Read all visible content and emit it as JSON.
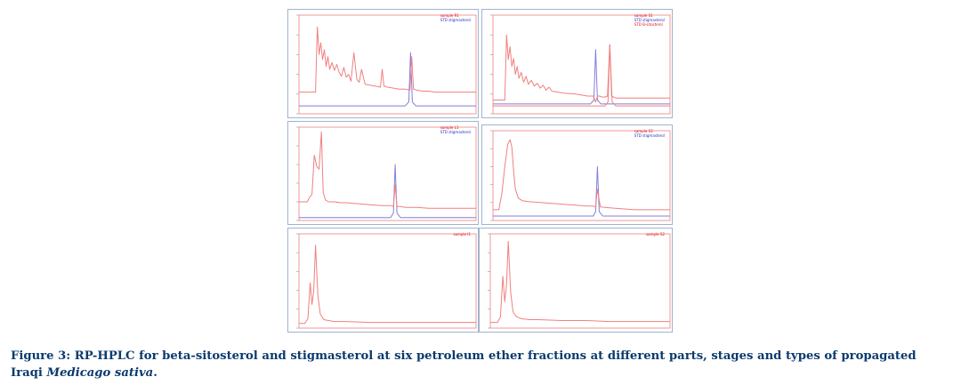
{
  "figure": {
    "caption_lead": "Figure 3: RP-HPLC for beta-sitosterol and stigmasterol at six petroleum ether fractions at different parts, stages and types of propagated Iraqi",
    "caption_italic": "Medicago sativa",
    "caption_end": ".",
    "colors": {
      "sample": "#f08080",
      "standard": "#8080d8",
      "frame": "#9fb4cf",
      "caption": "#0b3a6e",
      "legend_sample": "#e01010",
      "legend_standard": "#2030c0"
    }
  },
  "chart_data": [
    {
      "type": "line",
      "legend": [
        "sample R1",
        "STD stigmasterol"
      ],
      "xlim": [
        0,
        30
      ],
      "ylim": [
        0,
        100
      ],
      "series": [
        {
          "name": "sample R1",
          "role": "sample",
          "x": [
            0,
            2.8,
            3.1,
            3.4,
            3.7,
            4.0,
            4.3,
            4.6,
            4.9,
            5.2,
            5.6,
            6.0,
            6.4,
            6.8,
            7.2,
            7.6,
            8.0,
            8.4,
            8.8,
            9.3,
            9.8,
            10.2,
            10.6,
            11.2,
            12,
            13,
            13.8,
            14.1,
            14.4,
            15,
            16,
            17,
            18,
            18.8,
            19.1,
            19.4,
            20,
            21,
            22,
            23,
            24,
            26,
            28,
            30
          ],
          "y": [
            22,
            22,
            88,
            60,
            72,
            55,
            65,
            48,
            58,
            45,
            52,
            44,
            50,
            42,
            38,
            47,
            37,
            40,
            33,
            62,
            35,
            32,
            45,
            30,
            29,
            28,
            27,
            45,
            28,
            27,
            26,
            25,
            25,
            24,
            58,
            25,
            24,
            23,
            23,
            22,
            22,
            22,
            22,
            22
          ]
        },
        {
          "name": "STD stigmasterol",
          "role": "standard",
          "x": [
            0,
            18,
            18.6,
            18.9,
            19.2,
            19.8,
            30
          ],
          "y": [
            8,
            8,
            12,
            62,
            12,
            8,
            8
          ]
        }
      ]
    },
    {
      "type": "line",
      "legend": [
        "sample S1",
        "STD stigmasterol",
        "STD B-sitosterol"
      ],
      "xlim": [
        0,
        30
      ],
      "ylim": [
        0,
        100
      ],
      "series": [
        {
          "name": "sample S1",
          "role": "sample",
          "x": [
            0,
            2,
            2.3,
            2.6,
            2.9,
            3.2,
            3.5,
            3.8,
            4.1,
            4.4,
            4.8,
            5.2,
            5.6,
            6,
            6.5,
            7,
            7.5,
            8,
            8.5,
            9,
            9.5,
            10,
            11,
            12,
            14,
            16,
            17,
            17.4,
            17.7,
            18,
            18.5,
            19,
            19.4,
            19.8,
            20.1,
            20.4,
            20.8,
            22,
            24,
            26,
            28,
            30
          ],
          "y": [
            14,
            14,
            80,
            55,
            68,
            48,
            56,
            40,
            48,
            36,
            42,
            32,
            38,
            30,
            34,
            28,
            31,
            26,
            29,
            24,
            27,
            23,
            22,
            21,
            20,
            18,
            18,
            12,
            18,
            18,
            17,
            17,
            18,
            70,
            18,
            17,
            16,
            16,
            16,
            16,
            16,
            16
          ]
        },
        {
          "name": "STD stigmasterol",
          "role": "standard",
          "x": [
            0,
            16.5,
            17.1,
            17.4,
            17.7,
            18.3,
            30
          ],
          "y": [
            10,
            10,
            14,
            65,
            14,
            10,
            10
          ]
        },
        {
          "name": "STD B-sitosterol",
          "role": "sample",
          "x": [
            0,
            19,
            19.5,
            19.8,
            20.2,
            20.8,
            30
          ],
          "y": [
            8,
            8,
            12,
            70,
            12,
            8,
            8
          ]
        }
      ]
    },
    {
      "type": "line",
      "legend": [
        "sample L1",
        "STD stigmasterol"
      ],
      "xlim": [
        0,
        30
      ],
      "ylim": [
        0,
        100
      ],
      "series": [
        {
          "name": "sample L1",
          "role": "sample",
          "x": [
            0,
            1.4,
            1.8,
            2.2,
            2.6,
            3.0,
            3.4,
            3.8,
            4.1,
            4.5,
            5,
            6,
            7,
            8,
            10,
            12,
            14,
            15.5,
            16,
            16.3,
            16.6,
            17.2,
            18,
            20,
            22,
            24,
            26,
            28,
            30
          ],
          "y": [
            20,
            20,
            25,
            28,
            70,
            58,
            55,
            95,
            30,
            22,
            20,
            20,
            19,
            19,
            18,
            17,
            16,
            16,
            15,
            38,
            15,
            15,
            14,
            14,
            13,
            13,
            13,
            13,
            13
          ]
        },
        {
          "name": "STD stigmasterol",
          "role": "standard",
          "x": [
            0,
            15.5,
            16,
            16.3,
            16.6,
            17.2,
            30
          ],
          "y": [
            3,
            3,
            8,
            60,
            8,
            3,
            3
          ]
        }
      ]
    },
    {
      "type": "line",
      "legend": [
        "sample S3",
        "STD stigmasterol"
      ],
      "xlim": [
        0,
        30
      ],
      "ylim": [
        0,
        100
      ],
      "series": [
        {
          "name": "sample S3",
          "role": "sample",
          "x": [
            0,
            1,
            1.5,
            2,
            2.5,
            2.9,
            3.2,
            3.5,
            3.8,
            4.3,
            5,
            6,
            8,
            10,
            12,
            14,
            16,
            17,
            17.4,
            17.7,
            18.2,
            20,
            22,
            24,
            26,
            28,
            30
          ],
          "y": [
            12,
            12,
            30,
            60,
            85,
            90,
            82,
            55,
            35,
            25,
            22,
            21,
            20,
            19,
            18,
            17,
            16,
            16,
            15,
            35,
            15,
            14,
            13,
            12,
            12,
            12,
            12
          ]
        },
        {
          "name": "STD stigmasterol",
          "role": "standard",
          "x": [
            0,
            17,
            17.4,
            17.7,
            18,
            18.6,
            30
          ],
          "y": [
            5,
            5,
            10,
            60,
            10,
            5,
            5
          ]
        }
      ]
    },
    {
      "type": "line",
      "legend": [
        "sample I1"
      ],
      "xlim": [
        0,
        30
      ],
      "ylim": [
        0,
        100
      ],
      "series": [
        {
          "name": "sample I1",
          "role": "sample",
          "x": [
            0,
            1,
            1.5,
            1.9,
            2.2,
            2.5,
            2.8,
            3.2,
            3.6,
            4.2,
            5,
            6,
            8,
            12,
            16,
            20,
            25,
            30
          ],
          "y": [
            5,
            5,
            10,
            48,
            25,
            40,
            88,
            35,
            15,
            9,
            8,
            7,
            7,
            6,
            6,
            6,
            6,
            6
          ]
        }
      ]
    },
    {
      "type": "line",
      "legend": [
        "sample S2"
      ],
      "xlim": [
        0,
        30
      ],
      "ylim": [
        0,
        100
      ],
      "series": [
        {
          "name": "sample S2",
          "role": "sample",
          "x": [
            0,
            1.2,
            1.7,
            2.1,
            2.4,
            2.7,
            3.0,
            3.4,
            3.8,
            4.4,
            5.2,
            6.5,
            8,
            12,
            16,
            20,
            25,
            30
          ],
          "y": [
            6,
            6,
            12,
            55,
            28,
            45,
            92,
            38,
            17,
            12,
            10,
            9,
            9,
            8,
            8,
            7,
            7,
            7
          ]
        }
      ]
    }
  ]
}
